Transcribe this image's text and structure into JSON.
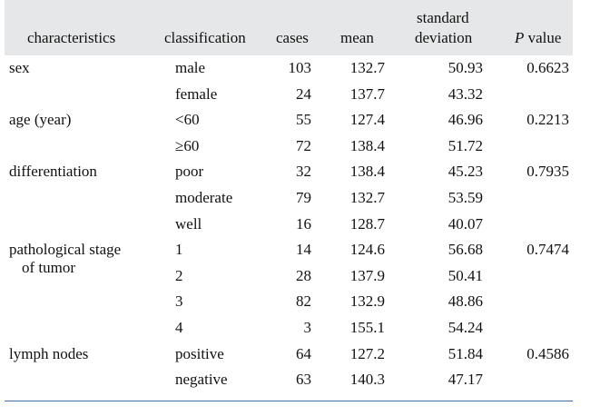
{
  "table": {
    "headers": {
      "characteristics": "characteristics",
      "classification": "classification",
      "cases": "cases",
      "mean": "mean",
      "std_line1": "standard",
      "std_line2": "deviation",
      "p_italic": "P",
      "p_rest": " value"
    },
    "groups": [
      {
        "label_lines": [
          "sex"
        ],
        "p_value": "0.6623",
        "rows": [
          {
            "classification": "male",
            "cases": "103",
            "mean": "132.7",
            "sd": "50.93"
          },
          {
            "classification": "female",
            "cases": "24",
            "mean": "137.7",
            "sd": "43.32"
          }
        ]
      },
      {
        "label_lines": [
          "age (year)"
        ],
        "p_value": "0.2213",
        "rows": [
          {
            "classification": "<60",
            "cases": "55",
            "mean": "127.4",
            "sd": "46.96"
          },
          {
            "classification": "≥60",
            "cases": "72",
            "mean": "138.4",
            "sd": "51.72"
          }
        ]
      },
      {
        "label_lines": [
          "differentiation"
        ],
        "p_value": "0.7935",
        "rows": [
          {
            "classification": "poor",
            "cases": "32",
            "mean": "138.4",
            "sd": "45.23"
          },
          {
            "classification": "moderate",
            "cases": "79",
            "mean": "132.7",
            "sd": "53.59"
          },
          {
            "classification": "well",
            "cases": "16",
            "mean": "128.7",
            "sd": "40.07"
          }
        ]
      },
      {
        "label_lines": [
          "pathological stage",
          "of tumor"
        ],
        "p_value": "0.7474",
        "rows": [
          {
            "classification": "1",
            "cases": "14",
            "mean": "124.6",
            "sd": "56.68"
          },
          {
            "classification": "2",
            "cases": "28",
            "mean": "137.9",
            "sd": "50.41"
          },
          {
            "classification": "3",
            "cases": "82",
            "mean": "132.9",
            "sd": "48.86"
          },
          {
            "classification": "4",
            "cases": "3",
            "mean": "155.1",
            "sd": "54.24"
          }
        ]
      },
      {
        "label_lines": [
          "lymph nodes"
        ],
        "p_value": "0.4586",
        "rows": [
          {
            "classification": "positive",
            "cases": "64",
            "mean": "127.2",
            "sd": "51.84"
          },
          {
            "classification": "negative",
            "cases": "63",
            "mean": "140.3",
            "sd": "47.17"
          }
        ]
      }
    ]
  }
}
